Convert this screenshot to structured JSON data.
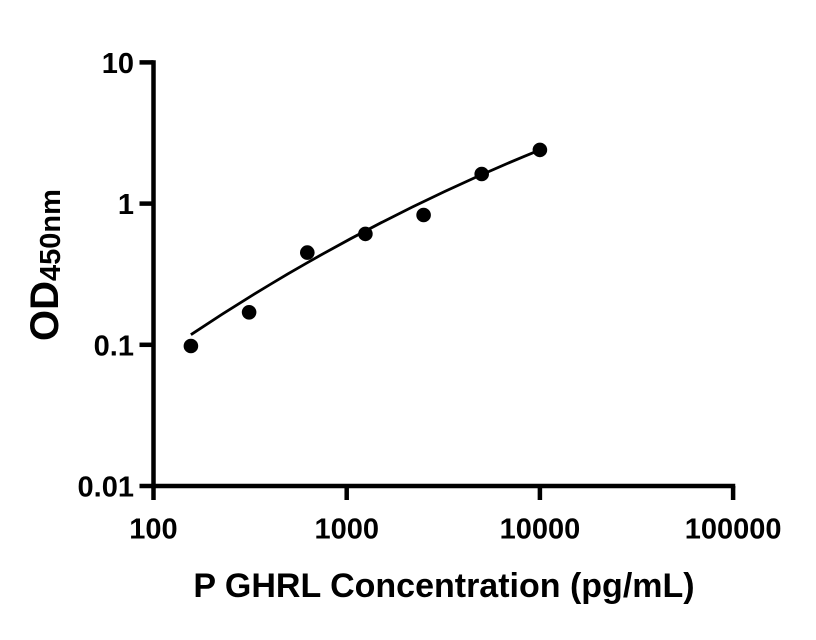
{
  "figure": {
    "background_color": "#ffffff",
    "foreground_color": "#000000",
    "chart_data": {
      "type": "scatter",
      "title": "",
      "xlabel": "P GHRL Concentration (pg/mL)",
      "ylabel": "OD",
      "ylabel_subscript": "450nm",
      "x_scale": "log",
      "y_scale": "log",
      "xlim": [
        100,
        100000
      ],
      "ylim": [
        0.01,
        10
      ],
      "x_ticks": [
        "100",
        "1000",
        "10000",
        "100000"
      ],
      "y_ticks": [
        "10",
        "1",
        "0.1",
        "0.01"
      ],
      "grid": false,
      "legend": false,
      "marker_color": "#000000",
      "line_color": "#000000",
      "series": [
        {
          "name": "standard-curve-points",
          "marker": "filled-circle",
          "points": [
            {
              "x": 156.25,
              "y": 0.098
            },
            {
              "x": 312.5,
              "y": 0.17
            },
            {
              "x": 625,
              "y": 0.45
            },
            {
              "x": 1250,
              "y": 0.61
            },
            {
              "x": 2500,
              "y": 0.83
            },
            {
              "x": 5000,
              "y": 1.62
            },
            {
              "x": 10000,
              "y": 2.4
            }
          ]
        }
      ],
      "fit_curve": {
        "name": "four-parameter-logistic-fit",
        "anchors": [
          {
            "x": 156.25,
            "y": 0.118
          },
          {
            "x": 1167,
            "y": 0.61
          },
          {
            "x": 10000,
            "y": 2.4
          }
        ]
      }
    }
  }
}
